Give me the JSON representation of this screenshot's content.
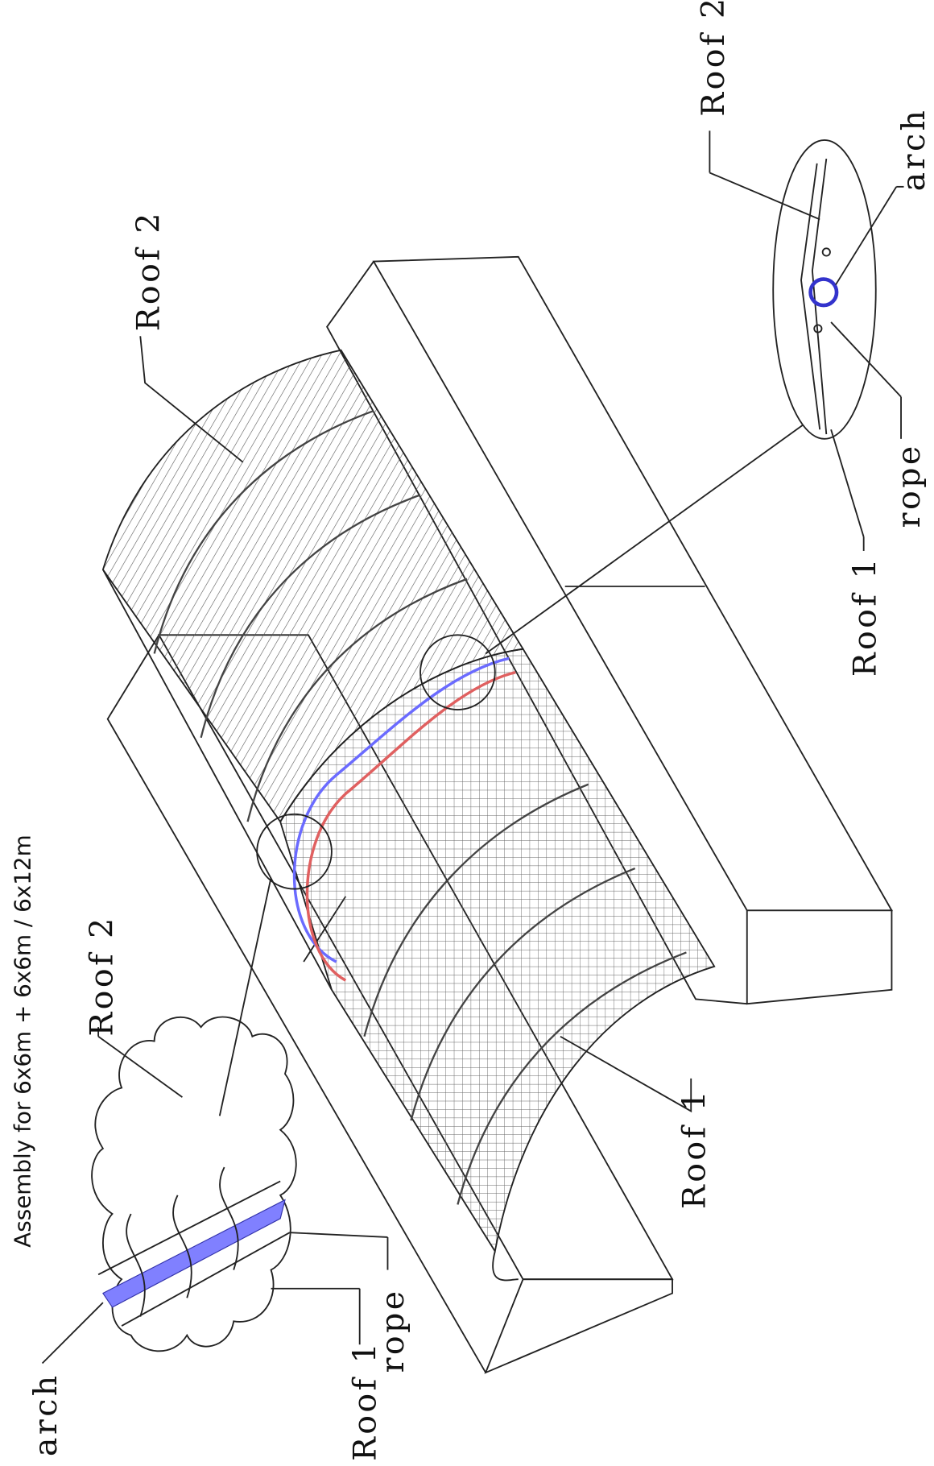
{
  "title": "Assembly for 6x6m + 6x6m / 6x12m",
  "labels": [
    "Roof 2",
    "arch",
    "rope",
    "Roof 1",
    "Roof 2",
    "Roof 2",
    "Roof 1",
    "arch",
    "Roof 1",
    "rope"
  ]
}
